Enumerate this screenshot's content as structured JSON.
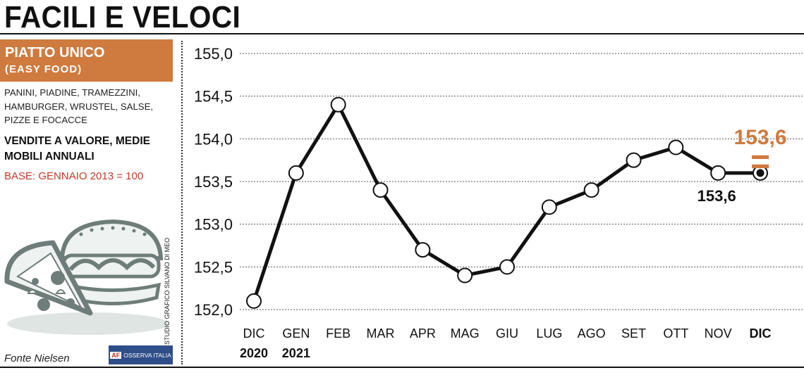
{
  "header": {
    "title": "FACILI E VELOCI"
  },
  "sidebar": {
    "box_title": "PIATTO UNICO",
    "box_subtitle": "(EASY FOOD)",
    "category_desc": "PANINI, PIADINE, TRAMEZZINI, HAMBURGER, WRUSTEL, SALSE, PIZZE E FOCACCE",
    "measure_desc": "VENDITE A VALORE, MEDIE MOBILI ANNUALI",
    "base_note": "BASE: GENNAIO 2013 = 100",
    "studio_credit": "STUDIO GRAFICO SILVANO DI MEO",
    "source": "Fonte Nielsen",
    "logo_mark": "AF",
    "logo_text": "OSSERVA ITALIA",
    "illustration_icon": "pizza-and-burger-icon",
    "accent_color": "#cf7a3e"
  },
  "chart_data": {
    "type": "line",
    "x": [
      "DIC|2020",
      "GEN|2021",
      "FEB",
      "MAR",
      "APR",
      "MAG",
      "GIU",
      "LUG",
      "AGO",
      "SET",
      "OTT",
      "NOV",
      "DIC"
    ],
    "values": [
      152.1,
      153.6,
      154.4,
      153.4,
      152.7,
      152.4,
      152.5,
      153.2,
      153.4,
      153.75,
      153.9,
      153.6,
      153.6
    ],
    "ylim": [
      152.0,
      155.0
    ],
    "yticks": [
      "152,0",
      "152,5",
      "153,0",
      "153,5",
      "154,0",
      "154,5",
      "155,0"
    ],
    "ytick_values": [
      152.0,
      152.5,
      153.0,
      153.5,
      154.0,
      154.5,
      155.0
    ],
    "grid": true,
    "highlight_last": true,
    "annotations": {
      "nov_label": "153,6",
      "last_label": "153,6",
      "last_symbol": "="
    },
    "line_color": "#111111",
    "accent_color": "#cf7a3e"
  }
}
